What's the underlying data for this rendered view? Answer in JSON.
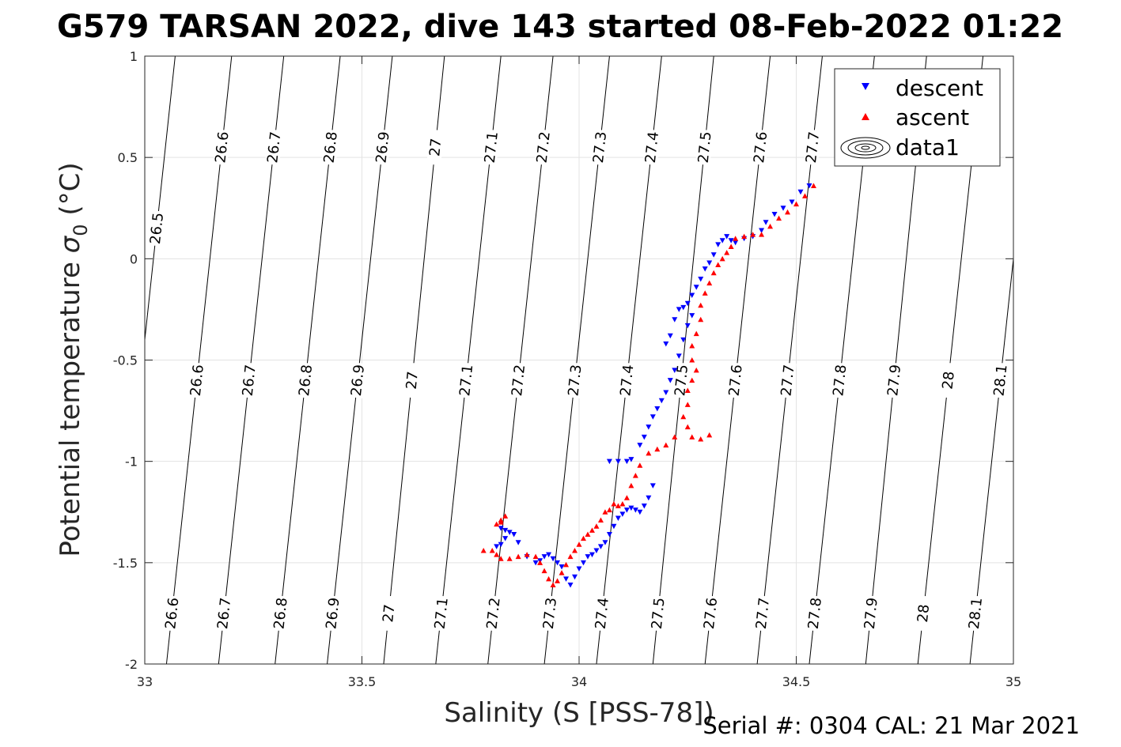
{
  "chart_data": {
    "type": "scatter",
    "title": "G579 TARSAN 2022, dive 143 started 08-Feb-2022 01:22",
    "xlabel": "Salinity (S [PSS-78])",
    "ylabel_main": "Potential temperature ",
    "ylabel_sigma": "σ",
    "ylabel_sub": "0",
    "ylabel_unit": " (°C)",
    "footer": "Serial #: 0304  CAL: 21 Mar 2021",
    "xlim": [
      33,
      35
    ],
    "ylim": [
      -2,
      1
    ],
    "x_ticks": [
      33,
      33.5,
      34,
      34.5,
      35
    ],
    "x_tick_labels": [
      "33",
      "33.5",
      "34",
      "34.5",
      "35"
    ],
    "y_ticks": [
      -2,
      -1.5,
      -1,
      -0.5,
      0,
      0.5,
      1
    ],
    "y_tick_labels": [
      "-2",
      "-1.5",
      "-1",
      "-0.5",
      "0",
      "0.5",
      "1"
    ],
    "grid": true,
    "legend_position": "top-right",
    "legend": [
      {
        "name": "descent",
        "marker": "triangle-down",
        "color": "#0000ff"
      },
      {
        "name": "ascent",
        "marker": "triangle-up",
        "color": "#ff0000"
      },
      {
        "name": "data1",
        "marker": "contour",
        "color": "#000000"
      }
    ],
    "isopycnals": [
      {
        "sigma": 26.5,
        "label": "26.5",
        "s_at_minus2": 32.92,
        "s_at_plus1": 33.07,
        "label_rows": [
          0.15
        ]
      },
      {
        "sigma": 26.6,
        "label": "26.6",
        "s_at_minus2": 33.05,
        "s_at_plus1": 33.2,
        "label_rows": [
          -1.75,
          -0.6,
          0.55
        ]
      },
      {
        "sigma": 26.7,
        "label": "26.7",
        "s_at_minus2": 33.17,
        "s_at_plus1": 33.32,
        "label_rows": [
          -1.75,
          -0.6,
          0.55
        ]
      },
      {
        "sigma": 26.8,
        "label": "26.8",
        "s_at_minus2": 33.3,
        "s_at_plus1": 33.45,
        "label_rows": [
          -1.75,
          -0.6,
          0.55
        ]
      },
      {
        "sigma": 26.9,
        "label": "26.9",
        "s_at_minus2": 33.42,
        "s_at_plus1": 33.57,
        "label_rows": [
          -1.75,
          -0.6,
          0.55
        ]
      },
      {
        "sigma": 27.0,
        "label": "27",
        "s_at_minus2": 33.55,
        "s_at_plus1": 33.69,
        "label_rows": [
          -1.75,
          -0.6,
          0.55
        ]
      },
      {
        "sigma": 27.1,
        "label": "27.1",
        "s_at_minus2": 33.67,
        "s_at_plus1": 33.82,
        "label_rows": [
          -1.75,
          -0.6,
          0.55
        ]
      },
      {
        "sigma": 27.2,
        "label": "27.2",
        "s_at_minus2": 33.79,
        "s_at_plus1": 33.94,
        "label_rows": [
          -1.75,
          -0.6,
          0.55
        ]
      },
      {
        "sigma": 27.3,
        "label": "27.3",
        "s_at_minus2": 33.92,
        "s_at_plus1": 34.07,
        "label_rows": [
          -1.75,
          -0.6,
          0.55
        ]
      },
      {
        "sigma": 27.4,
        "label": "27.4",
        "s_at_minus2": 34.04,
        "s_at_plus1": 34.19,
        "label_rows": [
          -1.75,
          -0.6,
          0.55
        ]
      },
      {
        "sigma": 27.5,
        "label": "27.5",
        "s_at_minus2": 34.17,
        "s_at_plus1": 34.31,
        "label_rows": [
          -1.75,
          -0.6,
          0.55
        ]
      },
      {
        "sigma": 27.6,
        "label": "27.6",
        "s_at_minus2": 34.29,
        "s_at_plus1": 34.44,
        "label_rows": [
          -1.75,
          -0.6,
          0.55
        ]
      },
      {
        "sigma": 27.7,
        "label": "27.7",
        "s_at_minus2": 34.41,
        "s_at_plus1": 34.56,
        "label_rows": [
          -1.75,
          -0.6,
          0.55
        ]
      },
      {
        "sigma": 27.8,
        "label": "27.8",
        "s_at_minus2": 34.53,
        "s_at_plus1": 34.68,
        "label_rows": [
          -1.75,
          -0.6
        ]
      },
      {
        "sigma": 27.9,
        "label": "27.9",
        "s_at_minus2": 34.66,
        "s_at_plus1": 34.8,
        "label_rows": [
          -1.75,
          -0.6
        ]
      },
      {
        "sigma": 28.0,
        "label": "28",
        "s_at_minus2": 34.78,
        "s_at_plus1": 34.93,
        "label_rows": [
          -1.75,
          -0.6
        ]
      },
      {
        "sigma": 28.1,
        "label": "28.1",
        "s_at_minus2": 34.9,
        "s_at_plus1": 35.05,
        "label_rows": [
          -1.75,
          -0.6
        ]
      }
    ],
    "series": [
      {
        "name": "descent",
        "color": "#0000ff",
        "marker": "triangle-down",
        "points": [
          [
            34.53,
            0.36
          ],
          [
            34.51,
            0.33
          ],
          [
            34.49,
            0.28
          ],
          [
            34.47,
            0.25
          ],
          [
            34.45,
            0.22
          ],
          [
            34.43,
            0.18
          ],
          [
            34.42,
            0.14
          ],
          [
            34.4,
            0.11
          ],
          [
            34.38,
            0.1
          ],
          [
            34.36,
            0.08
          ],
          [
            34.35,
            0.09
          ],
          [
            34.34,
            0.11
          ],
          [
            34.33,
            0.09
          ],
          [
            34.32,
            0.07
          ],
          [
            34.31,
            0.02
          ],
          [
            34.3,
            -0.02
          ],
          [
            34.29,
            -0.05
          ],
          [
            34.28,
            -0.1
          ],
          [
            34.27,
            -0.14
          ],
          [
            34.26,
            -0.18
          ],
          [
            34.25,
            -0.22
          ],
          [
            34.24,
            -0.24
          ],
          [
            34.23,
            -0.25
          ],
          [
            34.22,
            -0.3
          ],
          [
            34.21,
            -0.38
          ],
          [
            34.2,
            -0.42
          ],
          [
            34.26,
            -0.28
          ],
          [
            34.25,
            -0.33
          ],
          [
            34.24,
            -0.4
          ],
          [
            34.23,
            -0.48
          ],
          [
            34.22,
            -0.55
          ],
          [
            34.21,
            -0.6
          ],
          [
            34.2,
            -0.66
          ],
          [
            34.19,
            -0.7
          ],
          [
            34.18,
            -0.74
          ],
          [
            34.17,
            -0.78
          ],
          [
            34.16,
            -0.83
          ],
          [
            34.15,
            -0.88
          ],
          [
            34.14,
            -0.92
          ],
          [
            34.12,
            -0.99
          ],
          [
            34.11,
            -1.0
          ],
          [
            34.09,
            -1.0
          ],
          [
            34.07,
            -1.0
          ],
          [
            34.17,
            -1.12
          ],
          [
            34.16,
            -1.18
          ],
          [
            34.15,
            -1.22
          ],
          [
            34.14,
            -1.25
          ],
          [
            34.13,
            -1.24
          ],
          [
            34.12,
            -1.23
          ],
          [
            34.11,
            -1.24
          ],
          [
            34.1,
            -1.26
          ],
          [
            34.09,
            -1.28
          ],
          [
            34.08,
            -1.32
          ],
          [
            34.07,
            -1.36
          ],
          [
            34.06,
            -1.4
          ],
          [
            34.05,
            -1.42
          ],
          [
            34.04,
            -1.44
          ],
          [
            34.03,
            -1.46
          ],
          [
            34.02,
            -1.47
          ],
          [
            34.01,
            -1.5
          ],
          [
            34.0,
            -1.53
          ],
          [
            33.99,
            -1.57
          ],
          [
            33.98,
            -1.61
          ],
          [
            33.97,
            -1.58
          ],
          [
            33.96,
            -1.52
          ],
          [
            33.95,
            -1.5
          ],
          [
            33.94,
            -1.48
          ],
          [
            33.93,
            -1.46
          ],
          [
            33.92,
            -1.47
          ],
          [
            33.91,
            -1.49
          ],
          [
            33.9,
            -1.5
          ],
          [
            33.88,
            -1.47
          ],
          [
            33.86,
            -1.4
          ],
          [
            33.85,
            -1.36
          ],
          [
            33.84,
            -1.35
          ],
          [
            33.83,
            -1.34
          ],
          [
            33.82,
            -1.33
          ],
          [
            33.83,
            -1.38
          ],
          [
            33.82,
            -1.41
          ],
          [
            33.81,
            -1.42
          ]
        ]
      },
      {
        "name": "ascent",
        "color": "#ff0000",
        "marker": "triangle-up",
        "points": [
          [
            34.54,
            0.36
          ],
          [
            34.52,
            0.31
          ],
          [
            34.5,
            0.27
          ],
          [
            34.48,
            0.23
          ],
          [
            34.46,
            0.2
          ],
          [
            34.44,
            0.16
          ],
          [
            34.42,
            0.12
          ],
          [
            34.4,
            0.12
          ],
          [
            34.38,
            0.11
          ],
          [
            34.36,
            0.1
          ],
          [
            34.35,
            0.06
          ],
          [
            34.34,
            0.03
          ],
          [
            34.33,
            0.0
          ],
          [
            34.32,
            -0.03
          ],
          [
            34.31,
            -0.07
          ],
          [
            34.3,
            -0.12
          ],
          [
            34.29,
            -0.17
          ],
          [
            34.28,
            -0.23
          ],
          [
            34.28,
            -0.3
          ],
          [
            34.27,
            -0.37
          ],
          [
            34.26,
            -0.43
          ],
          [
            34.26,
            -0.5
          ],
          [
            34.27,
            -0.55
          ],
          [
            34.26,
            -0.6
          ],
          [
            34.25,
            -0.65
          ],
          [
            34.25,
            -0.72
          ],
          [
            34.24,
            -0.78
          ],
          [
            34.25,
            -0.83
          ],
          [
            34.26,
            -0.88
          ],
          [
            34.28,
            -0.89
          ],
          [
            34.3,
            -0.87
          ],
          [
            34.22,
            -0.88
          ],
          [
            34.2,
            -0.92
          ],
          [
            34.18,
            -0.94
          ],
          [
            34.16,
            -0.96
          ],
          [
            34.14,
            -1.02
          ],
          [
            34.13,
            -1.07
          ],
          [
            34.12,
            -1.12
          ],
          [
            34.11,
            -1.18
          ],
          [
            34.1,
            -1.21
          ],
          [
            34.09,
            -1.22
          ],
          [
            34.08,
            -1.21
          ],
          [
            34.07,
            -1.24
          ],
          [
            34.06,
            -1.25
          ],
          [
            34.05,
            -1.29
          ],
          [
            34.04,
            -1.32
          ],
          [
            34.03,
            -1.34
          ],
          [
            34.02,
            -1.36
          ],
          [
            34.01,
            -1.38
          ],
          [
            34.0,
            -1.41
          ],
          [
            33.99,
            -1.44
          ],
          [
            33.98,
            -1.47
          ],
          [
            33.97,
            -1.51
          ],
          [
            33.96,
            -1.55
          ],
          [
            33.95,
            -1.59
          ],
          [
            33.94,
            -1.61
          ],
          [
            33.93,
            -1.58
          ],
          [
            33.92,
            -1.54
          ],
          [
            33.91,
            -1.5
          ],
          [
            33.9,
            -1.47
          ],
          [
            33.88,
            -1.46
          ],
          [
            33.86,
            -1.47
          ],
          [
            33.84,
            -1.48
          ],
          [
            33.82,
            -1.48
          ],
          [
            33.81,
            -1.46
          ],
          [
            33.8,
            -1.44
          ],
          [
            33.78,
            -1.44
          ],
          [
            33.82,
            -1.3
          ],
          [
            33.83,
            -1.27
          ],
          [
            33.82,
            -1.29
          ],
          [
            33.81,
            -1.31
          ]
        ]
      }
    ]
  }
}
